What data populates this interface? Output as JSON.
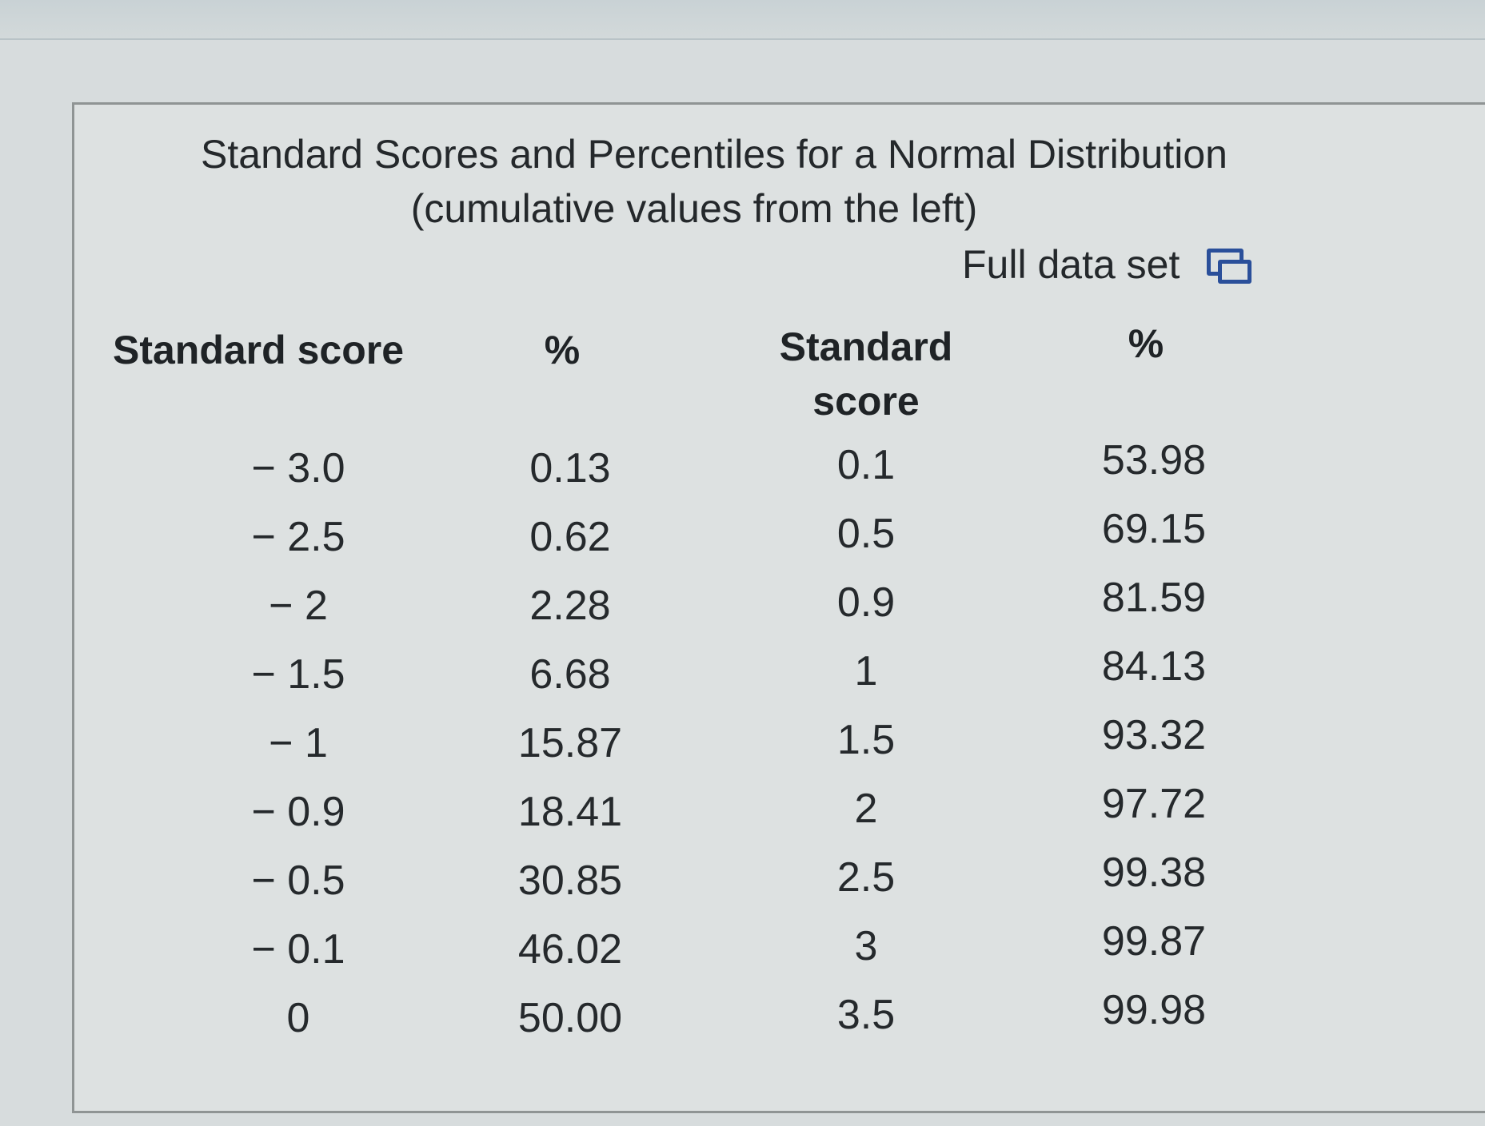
{
  "title_line1": "Standard Scores and Percentiles for a Normal Distribution",
  "title_line2": "(cumulative values from the left)",
  "full_data_set_label": "Full data set",
  "full_data_set_icon": "popup-window-icon",
  "headers": {
    "col1": "Standard score",
    "col2": "%",
    "col3_line1": "Standard",
    "col3_line2": "score",
    "col4": "%"
  },
  "left_rows": [
    {
      "score": "− 3.0",
      "pct": "0.13"
    },
    {
      "score": "− 2.5",
      "pct": "0.62"
    },
    {
      "score": "− 2",
      "pct": "2.28"
    },
    {
      "score": "− 1.5",
      "pct": "6.68"
    },
    {
      "score": "− 1",
      "pct": "15.87"
    },
    {
      "score": "− 0.9",
      "pct": "18.41"
    },
    {
      "score": "− 0.5",
      "pct": "30.85"
    },
    {
      "score": "− 0.1",
      "pct": "46.02"
    },
    {
      "score": "0",
      "pct": "50.00"
    }
  ],
  "right_rows": [
    {
      "score": "0.1",
      "pct": "53.98"
    },
    {
      "score": "0.5",
      "pct": "69.15"
    },
    {
      "score": "0.9",
      "pct": "81.59"
    },
    {
      "score": "1",
      "pct": "84.13"
    },
    {
      "score": "1.5",
      "pct": "93.32"
    },
    {
      "score": "2",
      "pct": "97.72"
    },
    {
      "score": "2.5",
      "pct": "99.38"
    },
    {
      "score": "3",
      "pct": "99.87"
    },
    {
      "score": "3.5",
      "pct": "99.98"
    }
  ]
}
